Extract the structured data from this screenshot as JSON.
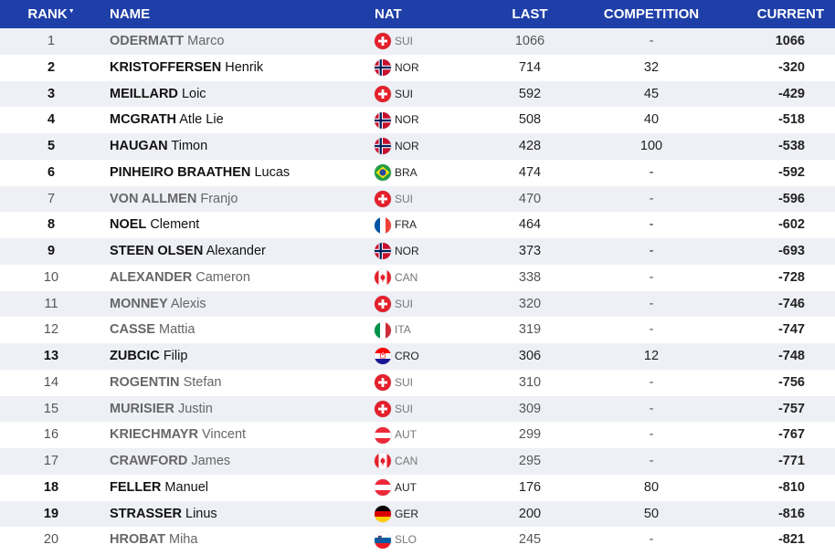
{
  "header": {
    "rank": "RANK",
    "sort_icon": "▼",
    "name": "NAME",
    "nat": "NAT",
    "last": "LAST",
    "competition": "COMPETITION",
    "current": "CURRENT"
  },
  "rows": [
    {
      "rank": "1",
      "surname": "ODERMATT",
      "first": "Marco",
      "nat": "SUI",
      "last": "1066",
      "competition": "-",
      "current": "1066",
      "active": false
    },
    {
      "rank": "2",
      "surname": "KRISTOFFERSEN",
      "first": "Henrik",
      "nat": "NOR",
      "last": "714",
      "competition": "32",
      "current": "-320",
      "active": true
    },
    {
      "rank": "3",
      "surname": "MEILLARD",
      "first": "Loic",
      "nat": "SUI",
      "last": "592",
      "competition": "45",
      "current": "-429",
      "active": true
    },
    {
      "rank": "4",
      "surname": "MCGRATH",
      "first": "Atle Lie",
      "nat": "NOR",
      "last": "508",
      "competition": "40",
      "current": "-518",
      "active": true
    },
    {
      "rank": "5",
      "surname": "HAUGAN",
      "first": "Timon",
      "nat": "NOR",
      "last": "428",
      "competition": "100",
      "current": "-538",
      "active": true
    },
    {
      "rank": "6",
      "surname": "PINHEIRO BRAATHEN",
      "first": "Lucas",
      "nat": "BRA",
      "last": "474",
      "competition": "-",
      "current": "-592",
      "active": true
    },
    {
      "rank": "7",
      "surname": "VON ALLMEN",
      "first": "Franjo",
      "nat": "SUI",
      "last": "470",
      "competition": "-",
      "current": "-596",
      "active": false
    },
    {
      "rank": "8",
      "surname": "NOEL",
      "first": "Clement",
      "nat": "FRA",
      "last": "464",
      "competition": "-",
      "current": "-602",
      "active": true
    },
    {
      "rank": "9",
      "surname": "STEEN OLSEN",
      "first": "Alexander",
      "nat": "NOR",
      "last": "373",
      "competition": "-",
      "current": "-693",
      "active": true
    },
    {
      "rank": "10",
      "surname": "ALEXANDER",
      "first": "Cameron",
      "nat": "CAN",
      "last": "338",
      "competition": "-",
      "current": "-728",
      "active": false
    },
    {
      "rank": "11",
      "surname": "MONNEY",
      "first": "Alexis",
      "nat": "SUI",
      "last": "320",
      "competition": "-",
      "current": "-746",
      "active": false
    },
    {
      "rank": "12",
      "surname": "CASSE",
      "first": "Mattia",
      "nat": "ITA",
      "last": "319",
      "competition": "-",
      "current": "-747",
      "active": false
    },
    {
      "rank": "13",
      "surname": "ZUBCIC",
      "first": "Filip",
      "nat": "CRO",
      "last": "306",
      "competition": "12",
      "current": "-748",
      "active": true
    },
    {
      "rank": "14",
      "surname": "ROGENTIN",
      "first": "Stefan",
      "nat": "SUI",
      "last": "310",
      "competition": "-",
      "current": "-756",
      "active": false
    },
    {
      "rank": "15",
      "surname": "MURISIER",
      "first": "Justin",
      "nat": "SUI",
      "last": "309",
      "competition": "-",
      "current": "-757",
      "active": false
    },
    {
      "rank": "16",
      "surname": "KRIECHMAYR",
      "first": "Vincent",
      "nat": "AUT",
      "last": "299",
      "competition": "-",
      "current": "-767",
      "active": false
    },
    {
      "rank": "17",
      "surname": "CRAWFORD",
      "first": "James",
      "nat": "CAN",
      "last": "295",
      "competition": "-",
      "current": "-771",
      "active": false
    },
    {
      "rank": "18",
      "surname": "FELLER",
      "first": "Manuel",
      "nat": "AUT",
      "last": "176",
      "competition": "80",
      "current": "-810",
      "active": true
    },
    {
      "rank": "19",
      "surname": "STRASSER",
      "first": "Linus",
      "nat": "GER",
      "last": "200",
      "competition": "50",
      "current": "-816",
      "active": true
    },
    {
      "rank": "20",
      "surname": "HROBAT",
      "first": "Miha",
      "nat": "SLO",
      "last": "245",
      "competition": "-",
      "current": "-821",
      "active": false
    }
  ],
  "colors": {
    "header_bg": "#1f3fa8",
    "row_alt": "#eef0f6"
  }
}
